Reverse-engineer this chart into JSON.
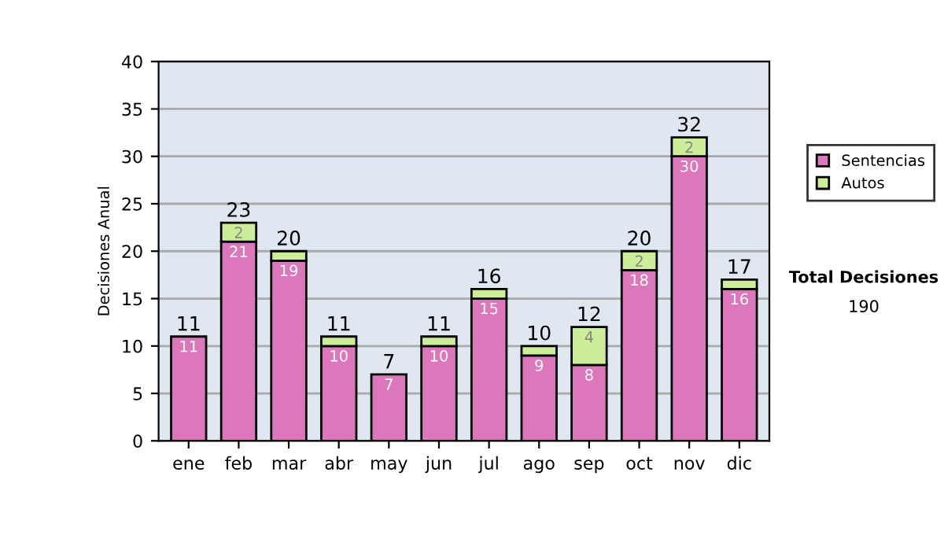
{
  "chart_data": {
    "type": "bar",
    "stacked": true,
    "ylabel": "Decisiones Anual",
    "categories": [
      "ene",
      "feb",
      "mar",
      "abr",
      "may",
      "jun",
      "jul",
      "ago",
      "sep",
      "oct",
      "nov",
      "dic"
    ],
    "series": [
      {
        "name": "Sentencias",
        "color": "#dd77bb",
        "values": [
          11,
          21,
          19,
          10,
          7,
          10,
          15,
          9,
          8,
          18,
          30,
          16
        ],
        "value_labels": [
          "11",
          "21",
          "19",
          "10",
          "7",
          "10",
          "15",
          "9",
          "8",
          "18",
          "30",
          "16"
        ]
      },
      {
        "name": "Autos",
        "color": "#ccee99",
        "values": [
          null,
          2,
          1,
          1,
          null,
          1,
          1,
          1,
          4,
          2,
          2,
          1
        ],
        "value_labels": [
          null,
          "2",
          null,
          null,
          null,
          null,
          null,
          null,
          "4",
          "2",
          "2",
          null
        ]
      }
    ],
    "totals": [
      "11",
      "23",
      "20",
      "11",
      "7",
      "11",
      "16",
      "10",
      "12",
      "20",
      "32",
      "17"
    ],
    "ylim": [
      0,
      40
    ],
    "yticks": [
      0,
      5,
      10,
      15,
      20,
      25,
      30,
      35,
      40
    ],
    "grid": "y",
    "legend": "right",
    "annotations": [
      "Total Decisiones",
      "190"
    ]
  }
}
